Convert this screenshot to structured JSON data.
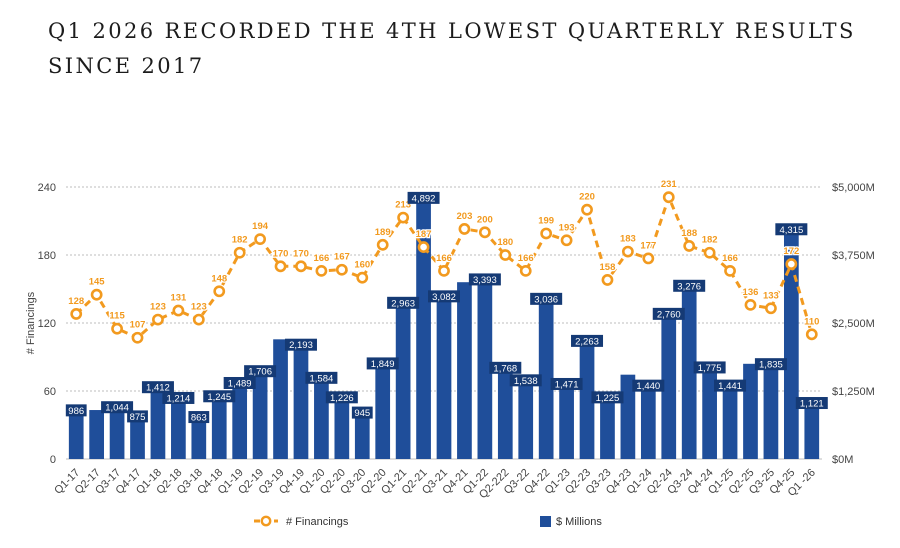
{
  "chart_data": {
    "type": "bar+line",
    "title_line1": "Q1 2026 RECORDED THE 4TH LOWEST QUARTERLY RESULTS",
    "title_line2": "SINCE 2017",
    "ylabel_left": "# Financings",
    "categories": [
      "Q1-17",
      "Q2-17",
      "Q3-17",
      "Q4-17",
      "Q1-18",
      "Q2-18",
      "Q3-18",
      "Q4-18",
      "Q1-19",
      "Q2-19",
      "Q3-19",
      "Q4-19",
      "Q1-20",
      "Q2-20",
      "Q3-20",
      "Q2-20",
      "Q1-21",
      "Q2-21",
      "Q3-21",
      "Q4-21",
      "Q1-22",
      "Q2-222",
      "Q3-22",
      "Q4-22",
      "Q1-23",
      "Q2-23",
      "Q3-23",
      "Q4-23",
      "Q1-24",
      "Q2-24",
      "Q3-24",
      "Q4-24",
      "Q1-25",
      "Q2-25",
      "Q3-25",
      "Q4-25",
      "Q1 -26"
    ],
    "series": [
      {
        "name": "$ Millions",
        "kind": "bar",
        "color": "#1f4e9a",
        "values": [
          986,
          900,
          1044,
          875,
          1412,
          1214,
          863,
          1245,
          1489,
          1706,
          2200,
          2193,
          1584,
          1226,
          945,
          1849,
          2963,
          4892,
          3082,
          3250,
          3393,
          1768,
          1538,
          3036,
          1471,
          2263,
          1225,
          1550,
          1440,
          2760,
          3276,
          1775,
          1441,
          1750,
          1835,
          4315,
          1121
        ],
        "labels": [
          "986",
          "",
          "1,044",
          "875",
          "1,412",
          "1,214",
          "863",
          "1,245",
          "1,489",
          "1,706",
          "",
          "2,193",
          "1,584",
          "1,226",
          "945",
          "1,849",
          "2,963",
          "4,892",
          "3,082",
          "",
          "3,393",
          "1,768",
          "1,538",
          "3,036",
          "1,471",
          "2,263",
          "1,225",
          "",
          "1,440",
          "2,760",
          "3,276",
          "1,775",
          "1,441",
          "",
          "1,835",
          "4,315",
          "1,121"
        ]
      },
      {
        "name": "# Financings",
        "kind": "line",
        "color": "#f29a1f",
        "values": [
          128,
          145,
          115,
          107,
          123,
          131,
          123,
          148,
          182,
          194,
          170,
          170,
          166,
          167,
          160,
          189,
          213,
          187,
          166,
          203,
          200,
          180,
          166,
          199,
          193,
          220,
          158,
          183,
          177,
          231,
          188,
          182,
          166,
          136,
          133,
          172,
          110
        ]
      }
    ],
    "y_left": {
      "min": 0,
      "max": 240,
      "ticks": [
        "0",
        "60",
        "120",
        "180",
        "240"
      ]
    },
    "y_right": {
      "min": 0,
      "max": 5000,
      "ticks": [
        "$0M",
        "$1,250M",
        "$2,500M",
        "$3,750M",
        "$5,000M"
      ]
    },
    "grid": true,
    "legend": {
      "placement": "bottom",
      "items": [
        "# Financings",
        "$ Millions"
      ]
    }
  }
}
